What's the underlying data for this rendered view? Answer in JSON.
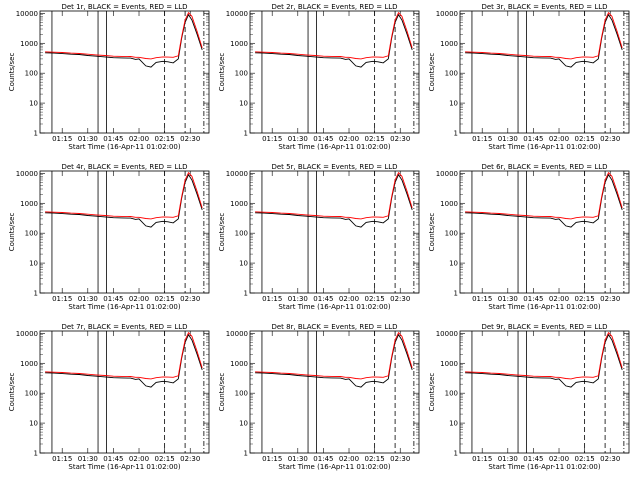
{
  "chart_data": [
    {
      "type": "line",
      "title": "Det 1r, BLACK = Events, RED = LLD",
      "ylabel": "Counts/sec",
      "xlabel": "Start Time (16-Apr-11 01:02:00)",
      "x": [
        "01:05",
        "01:10",
        "01:15",
        "01:20",
        "01:25",
        "01:30",
        "01:35",
        "01:40",
        "01:45",
        "01:50",
        "01:55",
        "01:58",
        "02:00",
        "02:04",
        "02:07",
        "02:10",
        "02:14",
        "02:17",
        "02:20",
        "02:23",
        "02:25",
        "02:27",
        "02:29",
        "02:31",
        "02:34",
        "02:37"
      ],
      "series": [
        {
          "color": "#000000",
          "values": [
            480,
            470,
            450,
            430,
            420,
            390,
            370,
            350,
            330,
            325,
            320,
            290,
            300,
            175,
            160,
            230,
            250,
            240,
            220,
            300,
            1500,
            5000,
            9000,
            6000,
            2000,
            600
          ]
        },
        {
          "color": "#ff0000",
          "values": [
            520,
            505,
            490,
            470,
            455,
            430,
            410,
            390,
            370,
            365,
            360,
            340,
            340,
            310,
            300,
            330,
            350,
            345,
            340,
            380,
            1700,
            6000,
            10500,
            8000,
            2500,
            700
          ]
        }
      ]
    },
    {
      "type": "line",
      "title": "Det 2r, BLACK = Events, RED = LLD",
      "ylabel": "Counts/sec",
      "xlabel": "Start Time (16-Apr-11 01:02:00)"
    },
    {
      "type": "line",
      "title": "Det 3r, BLACK = Events, RED = LLD",
      "ylabel": "Counts/sec",
      "xlabel": "Start Time (16-Apr-11 01:02:00)"
    },
    {
      "type": "line",
      "title": "Det 4r, BLACK = Events, RED = LLD",
      "ylabel": "Counts/sec",
      "xlabel": "Start Time (16-Apr-11 01:02:00)"
    },
    {
      "type": "line",
      "title": "Det 5r, BLACK = Events, RED = LLD",
      "ylabel": "Counts/sec",
      "xlabel": "Start Time (16-Apr-11 01:02:00)"
    },
    {
      "type": "line",
      "title": "Det 6r, BLACK = Events, RED = LLD",
      "ylabel": "Counts/sec",
      "xlabel": "Start Time (16-Apr-11 01:02:00)"
    },
    {
      "type": "line",
      "title": "Det 7r, BLACK = Events, RED = LLD",
      "ylabel": "Counts/sec",
      "xlabel": "Start Time (16-Apr-11 01:02:00)"
    },
    {
      "type": "line",
      "title": "Det 8r, BLACK = Events, RED = LLD",
      "ylabel": "Counts/sec",
      "xlabel": "Start Time (16-Apr-11 01:02:00)"
    },
    {
      "type": "line",
      "title": "Det 9r, BLACK = Events, RED = LLD",
      "ylabel": "Counts/sec",
      "xlabel": "Start Time (16-Apr-11 01:02:00)"
    }
  ],
  "shared": {
    "x_ticks": [
      "01:15",
      "01:30",
      "01:45",
      "02:00",
      "02:15",
      "02:30"
    ],
    "y_ticks": [
      "1",
      "10",
      "100",
      "1000",
      "10000"
    ],
    "ylim": [
      1,
      12000
    ],
    "yscale": "log",
    "solid_lines": [
      "01:09",
      "01:36",
      "01:41"
    ],
    "dashed_lines": [
      "02:15",
      "02:27"
    ],
    "dashdot_lines": [
      "02:38"
    ]
  }
}
